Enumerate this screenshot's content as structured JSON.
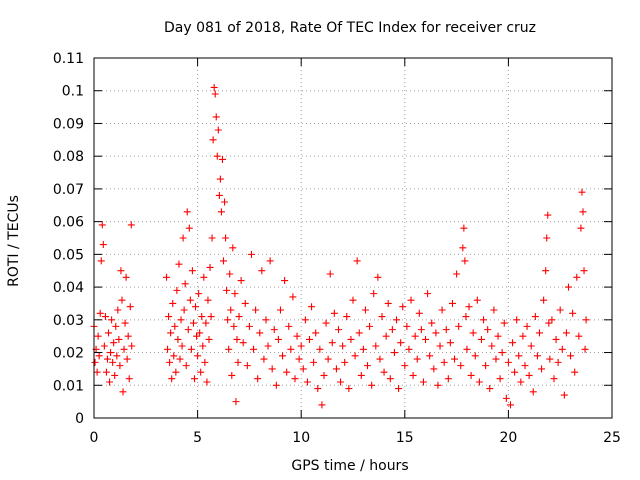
{
  "chart_data": {
    "type": "scatter",
    "title": "Day 081 of 2018, Rate Of TEC Index for receiver cruz",
    "xlabel": "GPS time / hours",
    "ylabel": "ROTI / TECUs",
    "xlim": [
      0,
      25
    ],
    "ylim": [
      0,
      0.11
    ],
    "x_ticks": [
      0,
      5,
      10,
      15,
      20,
      25
    ],
    "x_tick_labels": [
      "0",
      "5",
      "10",
      "15",
      "20",
      "25"
    ],
    "y_ticks": [
      0,
      0.01,
      0.02,
      0.03,
      0.04,
      0.05,
      0.06,
      0.07,
      0.08,
      0.09,
      0.1,
      0.11
    ],
    "y_tick_labels": [
      "0",
      "0.01",
      "0.02",
      "0.03",
      "0.04",
      "0.05",
      "0.06",
      "0.07",
      "0.08",
      "0.09",
      "0.1",
      "0.11"
    ],
    "grid": true,
    "marker": "+",
    "marker_color": "#ff0000",
    "series": [
      {
        "name": "ROTI",
        "points": [
          [
            0.0,
            0.028
          ],
          [
            0.05,
            0.017
          ],
          [
            0.1,
            0.021
          ],
          [
            0.15,
            0.014
          ],
          [
            0.2,
            0.025
          ],
          [
            0.25,
            0.019
          ],
          [
            0.3,
            0.032
          ],
          [
            0.35,
            0.048
          ],
          [
            0.4,
            0.059
          ],
          [
            0.45,
            0.053
          ],
          [
            0.5,
            0.022
          ],
          [
            0.55,
            0.031
          ],
          [
            0.6,
            0.014
          ],
          [
            0.65,
            0.018
          ],
          [
            0.7,
            0.026
          ],
          [
            0.75,
            0.011
          ],
          [
            0.8,
            0.02
          ],
          [
            0.85,
            0.03
          ],
          [
            0.9,
            0.017
          ],
          [
            0.95,
            0.023
          ],
          [
            1.0,
            0.013
          ],
          [
            1.05,
            0.028
          ],
          [
            1.1,
            0.019
          ],
          [
            1.15,
            0.033
          ],
          [
            1.2,
            0.024
          ],
          [
            1.25,
            0.016
          ],
          [
            1.3,
            0.045
          ],
          [
            1.35,
            0.036
          ],
          [
            1.4,
            0.008
          ],
          [
            1.45,
            0.021
          ],
          [
            1.5,
            0.029
          ],
          [
            1.55,
            0.043
          ],
          [
            1.6,
            0.018
          ],
          [
            1.65,
            0.025
          ],
          [
            1.7,
            0.012
          ],
          [
            1.75,
            0.034
          ],
          [
            1.8,
            0.059
          ],
          [
            1.82,
            0.022
          ],
          [
            3.5,
            0.043
          ],
          [
            3.55,
            0.021
          ],
          [
            3.6,
            0.031
          ],
          [
            3.65,
            0.017
          ],
          [
            3.7,
            0.026
          ],
          [
            3.75,
            0.012
          ],
          [
            3.8,
            0.035
          ],
          [
            3.85,
            0.019
          ],
          [
            3.9,
            0.028
          ],
          [
            3.95,
            0.014
          ],
          [
            4.0,
            0.039
          ],
          [
            4.05,
            0.024
          ],
          [
            4.1,
            0.047
          ],
          [
            4.15,
            0.018
          ],
          [
            4.2,
            0.03
          ],
          [
            4.25,
            0.022
          ],
          [
            4.3,
            0.055
          ],
          [
            4.35,
            0.033
          ],
          [
            4.4,
            0.041
          ],
          [
            4.45,
            0.016
          ],
          [
            4.5,
            0.063
          ],
          [
            4.55,
            0.027
          ],
          [
            4.6,
            0.058
          ],
          [
            4.65,
            0.036
          ],
          [
            4.7,
            0.021
          ],
          [
            4.75,
            0.045
          ],
          [
            4.8,
            0.029
          ],
          [
            4.85,
            0.012
          ],
          [
            4.9,
            0.034
          ],
          [
            4.95,
            0.025
          ],
          [
            5.0,
            0.019
          ],
          [
            5.05,
            0.038
          ],
          [
            5.1,
            0.026
          ],
          [
            5.15,
            0.014
          ],
          [
            5.2,
            0.031
          ],
          [
            5.25,
            0.022
          ],
          [
            5.3,
            0.043
          ],
          [
            5.35,
            0.017
          ],
          [
            5.4,
            0.029
          ],
          [
            5.45,
            0.011
          ],
          [
            5.5,
            0.036
          ],
          [
            5.55,
            0.024
          ],
          [
            5.6,
            0.046
          ],
          [
            5.65,
            0.031
          ],
          [
            5.7,
            0.055
          ],
          [
            5.75,
            0.085
          ],
          [
            5.8,
            0.101
          ],
          [
            5.85,
            0.099
          ],
          [
            5.9,
            0.092
          ],
          [
            5.95,
            0.08
          ],
          [
            6.0,
            0.088
          ],
          [
            6.05,
            0.068
          ],
          [
            6.1,
            0.073
          ],
          [
            6.15,
            0.063
          ],
          [
            6.2,
            0.079
          ],
          [
            6.25,
            0.048
          ],
          [
            6.3,
            0.066
          ],
          [
            6.35,
            0.055
          ],
          [
            6.4,
            0.039
          ],
          [
            6.45,
            0.03
          ],
          [
            6.5,
            0.021
          ],
          [
            6.55,
            0.044
          ],
          [
            6.6,
            0.033
          ],
          [
            6.65,
            0.013
          ],
          [
            6.7,
            0.052
          ],
          [
            6.75,
            0.028
          ],
          [
            6.8,
            0.038
          ],
          [
            6.85,
            0.005
          ],
          [
            6.9,
            0.024
          ],
          [
            6.95,
            0.017
          ],
          [
            7.0,
            0.031
          ],
          [
            7.1,
            0.042
          ],
          [
            7.2,
            0.023
          ],
          [
            7.3,
            0.035
          ],
          [
            7.4,
            0.016
          ],
          [
            7.5,
            0.028
          ],
          [
            7.6,
            0.05
          ],
          [
            7.7,
            0.021
          ],
          [
            7.8,
            0.033
          ],
          [
            7.9,
            0.012
          ],
          [
            8.0,
            0.026
          ],
          [
            8.1,
            0.045
          ],
          [
            8.2,
            0.018
          ],
          [
            8.3,
            0.03
          ],
          [
            8.4,
            0.022
          ],
          [
            8.5,
            0.048
          ],
          [
            8.6,
            0.015
          ],
          [
            8.7,
            0.027
          ],
          [
            8.8,
            0.01
          ],
          [
            8.9,
            0.024
          ],
          [
            9.0,
            0.033
          ],
          [
            9.1,
            0.019
          ],
          [
            9.2,
            0.042
          ],
          [
            9.3,
            0.014
          ],
          [
            9.4,
            0.028
          ],
          [
            9.5,
            0.021
          ],
          [
            9.6,
            0.037
          ],
          [
            9.7,
            0.012
          ],
          [
            9.8,
            0.025
          ],
          [
            9.9,
            0.018
          ],
          [
            10.0,
            0.022
          ],
          [
            10.1,
            0.015
          ],
          [
            10.2,
            0.03
          ],
          [
            10.3,
            0.011
          ],
          [
            10.4,
            0.024
          ],
          [
            10.5,
            0.034
          ],
          [
            10.6,
            0.017
          ],
          [
            10.7,
            0.026
          ],
          [
            10.8,
            0.009
          ],
          [
            10.9,
            0.021
          ],
          [
            11.0,
            0.004
          ],
          [
            11.1,
            0.013
          ],
          [
            11.2,
            0.029
          ],
          [
            11.3,
            0.018
          ],
          [
            11.4,
            0.044
          ],
          [
            11.5,
            0.023
          ],
          [
            11.6,
            0.032
          ],
          [
            11.7,
            0.015
          ],
          [
            11.8,
            0.027
          ],
          [
            11.9,
            0.011
          ],
          [
            12.0,
            0.022
          ],
          [
            12.1,
            0.017
          ],
          [
            12.2,
            0.031
          ],
          [
            12.3,
            0.009
          ],
          [
            12.4,
            0.024
          ],
          [
            12.5,
            0.036
          ],
          [
            12.6,
            0.019
          ],
          [
            12.7,
            0.048
          ],
          [
            12.8,
            0.026
          ],
          [
            12.9,
            0.013
          ],
          [
            13.0,
            0.021
          ],
          [
            13.1,
            0.033
          ],
          [
            13.2,
            0.016
          ],
          [
            13.3,
            0.028
          ],
          [
            13.4,
            0.01
          ],
          [
            13.5,
            0.038
          ],
          [
            13.6,
            0.022
          ],
          [
            13.7,
            0.043
          ],
          [
            13.8,
            0.018
          ],
          [
            13.9,
            0.031
          ],
          [
            14.0,
            0.014
          ],
          [
            14.1,
            0.025
          ],
          [
            14.2,
            0.035
          ],
          [
            14.3,
            0.012
          ],
          [
            14.4,
            0.027
          ],
          [
            14.5,
            0.02
          ],
          [
            14.6,
            0.03
          ],
          [
            14.7,
            0.009
          ],
          [
            14.8,
            0.023
          ],
          [
            14.9,
            0.034
          ],
          [
            15.0,
            0.016
          ],
          [
            15.1,
            0.028
          ],
          [
            15.2,
            0.021
          ],
          [
            15.3,
            0.036
          ],
          [
            15.4,
            0.013
          ],
          [
            15.5,
            0.025
          ],
          [
            15.6,
            0.018
          ],
          [
            15.7,
            0.032
          ],
          [
            15.8,
            0.027
          ],
          [
            15.9,
            0.011
          ],
          [
            16.0,
            0.024
          ],
          [
            16.1,
            0.038
          ],
          [
            16.2,
            0.019
          ],
          [
            16.3,
            0.029
          ],
          [
            16.4,
            0.015
          ],
          [
            16.5,
            0.026
          ],
          [
            16.6,
            0.01
          ],
          [
            16.7,
            0.022
          ],
          [
            16.8,
            0.033
          ],
          [
            16.9,
            0.017
          ],
          [
            17.0,
            0.027
          ],
          [
            17.1,
            0.012
          ],
          [
            17.2,
            0.023
          ],
          [
            17.3,
            0.035
          ],
          [
            17.4,
            0.018
          ],
          [
            17.5,
            0.044
          ],
          [
            17.6,
            0.028
          ],
          [
            17.7,
            0.016
          ],
          [
            17.8,
            0.052
          ],
          [
            17.85,
            0.058
          ],
          [
            17.9,
            0.048
          ],
          [
            17.95,
            0.031
          ],
          [
            18.0,
            0.021
          ],
          [
            18.1,
            0.034
          ],
          [
            18.2,
            0.013
          ],
          [
            18.3,
            0.026
          ],
          [
            18.4,
            0.019
          ],
          [
            18.5,
            0.036
          ],
          [
            18.6,
            0.011
          ],
          [
            18.7,
            0.024
          ],
          [
            18.8,
            0.03
          ],
          [
            18.9,
            0.016
          ],
          [
            19.0,
            0.027
          ],
          [
            19.1,
            0.009
          ],
          [
            19.2,
            0.022
          ],
          [
            19.3,
            0.033
          ],
          [
            19.4,
            0.018
          ],
          [
            19.5,
            0.025
          ],
          [
            19.6,
            0.012
          ],
          [
            19.7,
            0.02
          ],
          [
            19.8,
            0.029
          ],
          [
            19.9,
            0.006
          ],
          [
            20.0,
            0.017
          ],
          [
            20.1,
            0.004
          ],
          [
            20.2,
            0.023
          ],
          [
            20.3,
            0.014
          ],
          [
            20.4,
            0.03
          ],
          [
            20.5,
            0.019
          ],
          [
            20.6,
            0.011
          ],
          [
            20.7,
            0.025
          ],
          [
            20.8,
            0.016
          ],
          [
            20.9,
            0.028
          ],
          [
            21.0,
            0.013
          ],
          [
            21.1,
            0.022
          ],
          [
            21.2,
            0.008
          ],
          [
            21.3,
            0.031
          ],
          [
            21.4,
            0.019
          ],
          [
            21.5,
            0.026
          ],
          [
            21.6,
            0.015
          ],
          [
            21.7,
            0.036
          ],
          [
            21.8,
            0.045
          ],
          [
            21.85,
            0.055
          ],
          [
            21.9,
            0.062
          ],
          [
            21.95,
            0.029
          ],
          [
            22.0,
            0.018
          ],
          [
            22.1,
            0.03
          ],
          [
            22.2,
            0.012
          ],
          [
            22.3,
            0.024
          ],
          [
            22.4,
            0.017
          ],
          [
            22.5,
            0.033
          ],
          [
            22.6,
            0.021
          ],
          [
            22.7,
            0.007
          ],
          [
            22.8,
            0.026
          ],
          [
            22.9,
            0.04
          ],
          [
            23.0,
            0.019
          ],
          [
            23.1,
            0.032
          ],
          [
            23.2,
            0.014
          ],
          [
            23.3,
            0.043
          ],
          [
            23.4,
            0.025
          ],
          [
            23.5,
            0.058
          ],
          [
            23.55,
            0.069
          ],
          [
            23.6,
            0.063
          ],
          [
            23.65,
            0.045
          ],
          [
            23.7,
            0.021
          ],
          [
            23.75,
            0.03
          ]
        ]
      }
    ]
  }
}
